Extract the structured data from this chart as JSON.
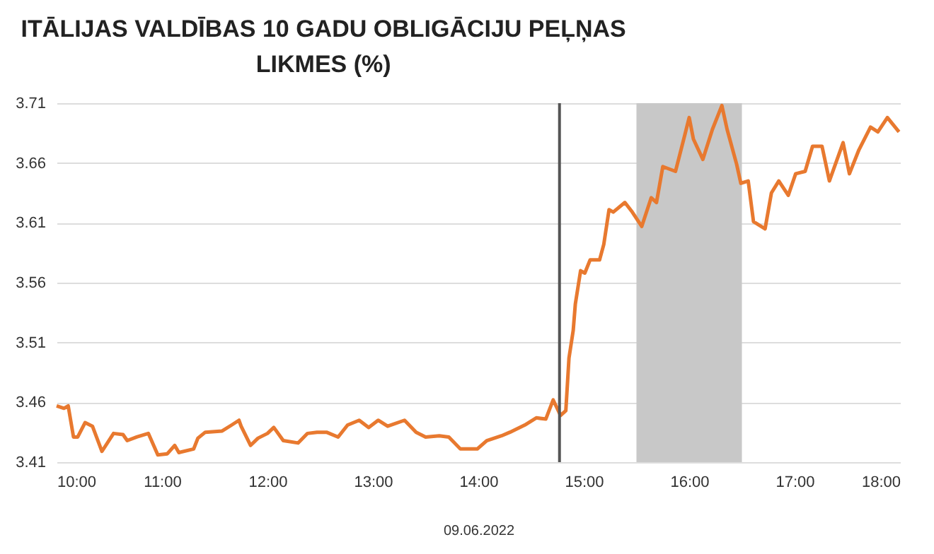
{
  "chart_data": {
    "type": "line",
    "title": "ITĀLIJAS VALDĪBAS 10 GADU OBLIGĀCIJU PEĻŅAS\nLIKMES (%)",
    "xlabel": "09.06.2022",
    "x": [
      10.0,
      10.07,
      10.11,
      10.16,
      10.2,
      10.27,
      10.34,
      10.43,
      10.54,
      10.63,
      10.67,
      10.76,
      10.87,
      10.96,
      11.05,
      11.12,
      11.16,
      11.3,
      11.34,
      11.41,
      11.57,
      11.66,
      11.73,
      11.75,
      11.84,
      11.91,
      12.0,
      12.06,
      12.15,
      12.29,
      12.38,
      12.47,
      12.56,
      12.67,
      12.76,
      12.87,
      12.96,
      13.05,
      13.14,
      13.3,
      13.41,
      13.5,
      13.63,
      13.72,
      13.83,
      13.99,
      14.08,
      14.22,
      14.3,
      14.44,
      14.55,
      14.64,
      14.71,
      14.78,
      14.83,
      14.86,
      14.9,
      14.92,
      14.97,
      15.01,
      15.06,
      15.15,
      15.19,
      15.24,
      15.28,
      15.39,
      15.46,
      15.55,
      15.64,
      15.69,
      15.75,
      15.87,
      15.96,
      16.0,
      16.04,
      16.13,
      16.22,
      16.31,
      16.36,
      16.45,
      16.49,
      16.56,
      16.61,
      16.72,
      16.78,
      16.85,
      16.94,
      17.01,
      17.1,
      17.17,
      17.26,
      17.33,
      17.46,
      17.52,
      17.61,
      17.72,
      17.79,
      17.88,
      17.99
    ],
    "series": [
      {
        "color": "#e8792f",
        "values": [
          3.457,
          3.455,
          3.457,
          3.431,
          3.431,
          3.443,
          3.44,
          3.419,
          3.434,
          3.433,
          3.428,
          3.431,
          3.434,
          3.416,
          3.417,
          3.424,
          3.418,
          3.421,
          3.43,
          3.435,
          3.436,
          3.441,
          3.445,
          3.44,
          3.424,
          3.43,
          3.434,
          3.439,
          3.428,
          3.426,
          3.434,
          3.435,
          3.435,
          3.431,
          3.441,
          3.445,
          3.439,
          3.445,
          3.44,
          3.445,
          3.435,
          3.431,
          3.432,
          3.431,
          3.421,
          3.421,
          3.428,
          3.432,
          3.435,
          3.441,
          3.447,
          3.446,
          3.462,
          3.449,
          3.453,
          3.497,
          3.52,
          3.542,
          3.57,
          3.568,
          3.579,
          3.579,
          3.592,
          3.621,
          3.619,
          3.627,
          3.619,
          3.607,
          3.631,
          3.627,
          3.657,
          3.653,
          3.684,
          3.698,
          3.68,
          3.663,
          3.688,
          3.708,
          3.688,
          3.659,
          3.643,
          3.645,
          3.611,
          3.605,
          3.635,
          3.645,
          3.633,
          3.651,
          3.653,
          3.674,
          3.674,
          3.645,
          3.677,
          3.651,
          3.671,
          3.69,
          3.686,
          3.698,
          3.686
        ]
      }
    ],
    "xlim": [
      10,
      18
    ],
    "xticks": [
      {
        "value": 10,
        "label": "10:00"
      },
      {
        "value": 11,
        "label": "11:00"
      },
      {
        "value": 12,
        "label": "12:00"
      },
      {
        "value": 13,
        "label": "13:00"
      },
      {
        "value": 14,
        "label": "14:00"
      },
      {
        "value": 15,
        "label": "15:00"
      },
      {
        "value": 16,
        "label": "16:00"
      },
      {
        "value": 17,
        "label": "17:00"
      },
      {
        "value": 18,
        "label": "18:00"
      }
    ],
    "ylim": [
      3.41,
      3.71
    ],
    "yticks": [
      3.41,
      3.46,
      3.51,
      3.56,
      3.61,
      3.66,
      3.71
    ],
    "ref_lines": [
      {
        "axis": "x",
        "value": 14.77,
        "color": "#555555"
      }
    ],
    "bands": [
      {
        "axis": "x",
        "from": 15.5,
        "to": 16.5,
        "color": "#c8c8c8"
      }
    ],
    "grid": "y"
  }
}
